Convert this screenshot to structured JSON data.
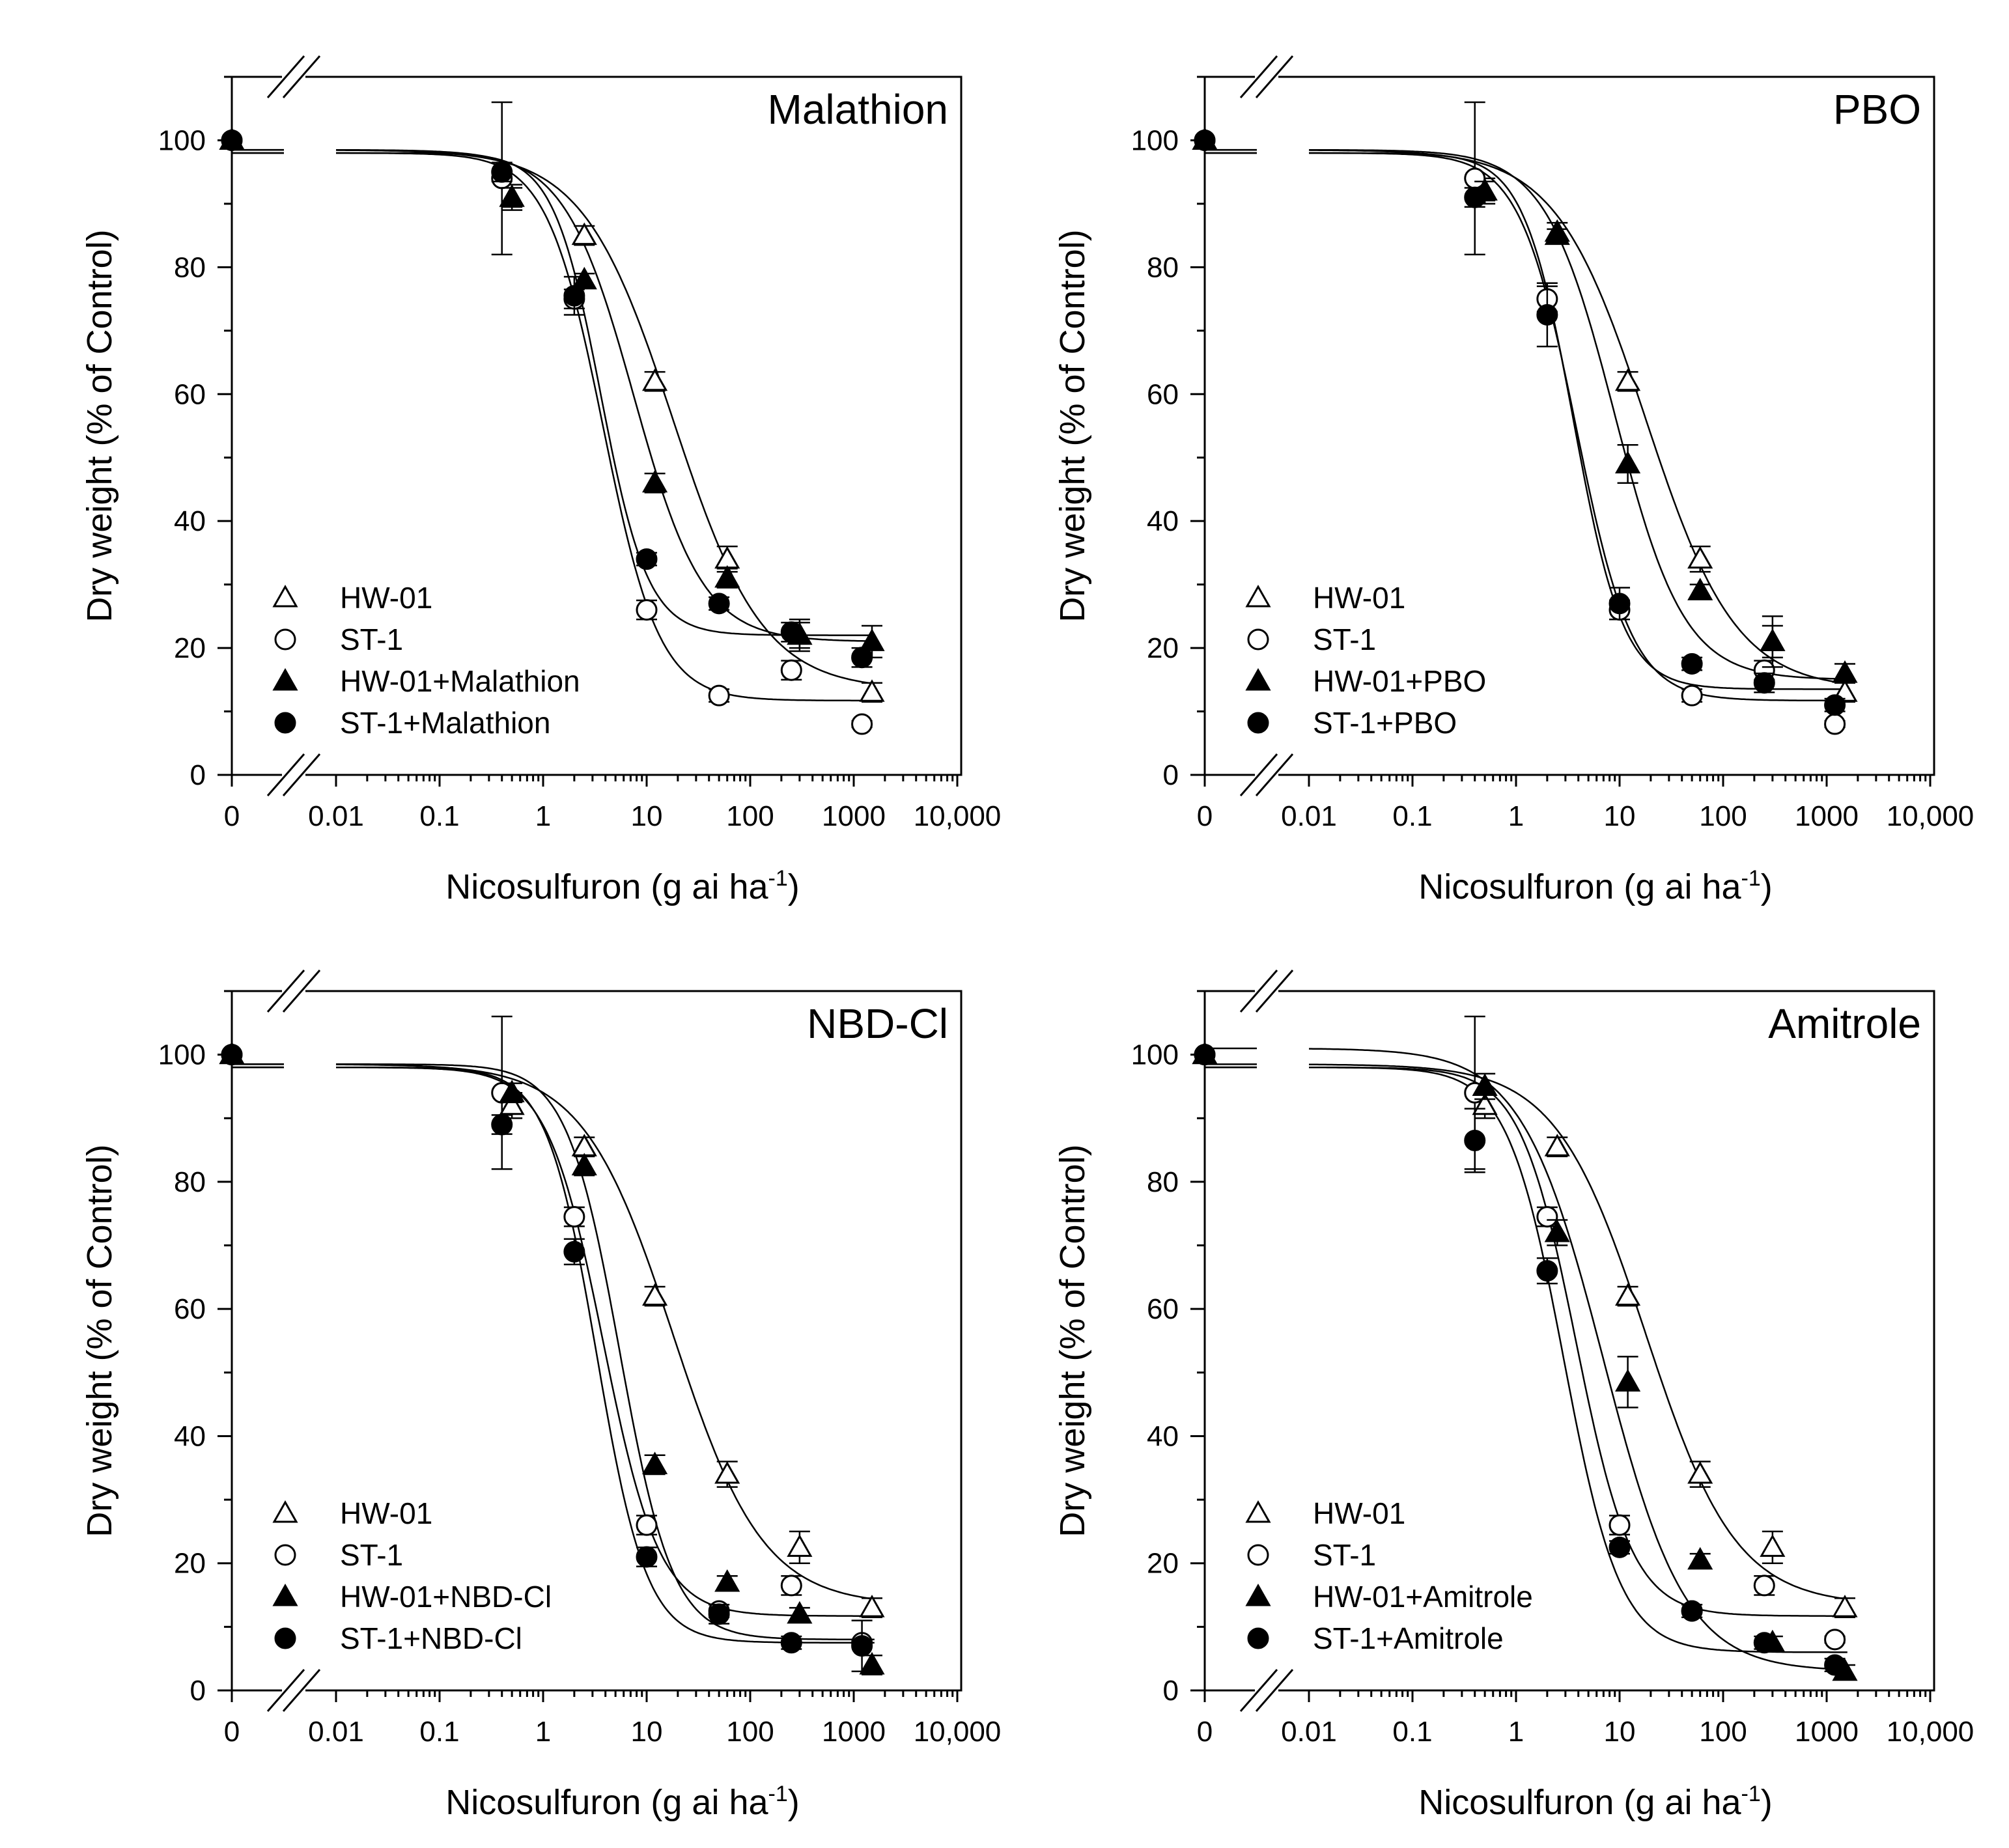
{
  "figure": {
    "shared": {
      "xlabel": "Nicosulfuron (g ai ha",
      "xlabel_sup": "-1",
      "xlabel_end": ")",
      "ylabel": "Dry weight (% of Control)",
      "x_tick_labels": [
        "0",
        "0.01",
        "0.1",
        "1",
        "10",
        "100",
        "1000",
        "10,000"
      ],
      "y_tick_labels": [
        "0",
        "20",
        "40",
        "60",
        "80",
        "100"
      ]
    }
  },
  "chart_data": [
    {
      "type": "scatter",
      "title": "Malathion",
      "xlabel": "Nicosulfuron (g ai ha-1)",
      "ylabel": "Dry weight (% of Control)",
      "x_scale": "log with axis break (0 plotted before break)",
      "xlim": [
        0.01,
        10000
      ],
      "ylim": [
        0,
        110
      ],
      "grid": false,
      "legend_position": "bottom-left",
      "series": [
        {
          "name": "HW-01",
          "marker": "triangle-open",
          "x": [
            0,
            0.5,
            2.5,
            12,
            60,
            300,
            1500
          ],
          "y": [
            100,
            91,
            85,
            62,
            34,
            22,
            13
          ],
          "err": [
            0,
            2,
            1.5,
            1.5,
            2,
            2.5,
            1.5
          ],
          "fit": {
            "bottom": 13.4,
            "top": 98.5,
            "ed50": 18,
            "slope": 1.0
          }
        },
        {
          "name": "ST-1",
          "marker": "circle-open",
          "x": [
            0,
            0.4,
            2,
            10,
            50,
            250,
            1200
          ],
          "y": [
            100,
            94,
            75,
            26,
            12.5,
            16.5,
            8
          ],
          "err": [
            0,
            12,
            1.5,
            1.5,
            1,
            1.5,
            0.5
          ],
          "fit": {
            "bottom": 11.7,
            "top": 98,
            "ed50": 3.8,
            "slope": 1.6
          }
        },
        {
          "name": "HW-01+Malathion",
          "marker": "triangle-filled",
          "x": [
            0,
            0.5,
            2.5,
            12,
            60,
            300,
            1500
          ],
          "y": [
            100,
            91,
            78,
            46,
            31,
            22,
            21
          ],
          "err": [
            0,
            1.5,
            1,
            1.5,
            1.5,
            2,
            2.5
          ],
          "fit": {
            "bottom": 21,
            "top": 98.5,
            "ed50": 7.5,
            "slope": 1.3
          }
        },
        {
          "name": "ST-1+Malathion",
          "marker": "circle-filled",
          "x": [
            0,
            0.4,
            2,
            10,
            50,
            250,
            1200
          ],
          "y": [
            100,
            95,
            75.5,
            34,
            27,
            22.5,
            18.5
          ],
          "err": [
            0,
            1.5,
            3,
            1,
            1,
            1.5,
            1.5
          ],
          "fit": {
            "bottom": 22,
            "top": 98,
            "ed50": 3.6,
            "slope": 1.9
          }
        }
      ]
    },
    {
      "type": "scatter",
      "title": "PBO",
      "xlabel": "Nicosulfuron (g ai ha-1)",
      "ylabel": "Dry weight (% of Control)",
      "x_scale": "log with axis break (0 plotted before break)",
      "xlim": [
        0.01,
        10000
      ],
      "ylim": [
        0,
        110
      ],
      "grid": false,
      "legend_position": "bottom-left",
      "series": [
        {
          "name": "HW-01",
          "marker": "triangle-open",
          "x": [
            0,
            0.5,
            2.5,
            12,
            60,
            300,
            1500
          ],
          "y": [
            100,
            92,
            85.5,
            62,
            34,
            21,
            13
          ],
          "err": [
            0,
            2,
            1.5,
            1.5,
            2,
            2.5,
            1.5
          ],
          "fit": {
            "bottom": 13.4,
            "top": 98.5,
            "ed50": 18,
            "slope": 1.0
          }
        },
        {
          "name": "ST-1",
          "marker": "circle-open",
          "x": [
            0,
            0.4,
            2,
            10,
            50,
            250,
            1200
          ],
          "y": [
            100,
            94,
            75,
            26,
            12.5,
            16.5,
            8
          ],
          "err": [
            0,
            12,
            2,
            1.5,
            1,
            1.5,
            0.5
          ],
          "fit": {
            "bottom": 11.7,
            "top": 98,
            "ed50": 3.8,
            "slope": 1.6
          }
        },
        {
          "name": "HW-01+PBO",
          "marker": "triangle-filled",
          "x": [
            0,
            0.5,
            2.5,
            12,
            60,
            300,
            1500
          ],
          "y": [
            100,
            92,
            85,
            49,
            29,
            21,
            16
          ],
          "err": [
            0,
            1.5,
            1,
            3,
            1,
            4,
            1.5
          ],
          "fit": {
            "bottom": 15,
            "top": 98.5,
            "ed50": 9,
            "slope": 1.3
          }
        },
        {
          "name": "ST-1+PBO",
          "marker": "circle-filled",
          "x": [
            0,
            0.4,
            2,
            10,
            50,
            250,
            1200
          ],
          "y": [
            100,
            91,
            72.5,
            27,
            17.5,
            14.5,
            11
          ],
          "err": [
            0,
            1.5,
            5,
            2.5,
            1,
            1.5,
            1
          ],
          "fit": {
            "bottom": 13.5,
            "top": 98,
            "ed50": 3.6,
            "slope": 1.8
          }
        }
      ]
    },
    {
      "type": "scatter",
      "title": "NBD-Cl",
      "xlabel": "Nicosulfuron (g ai ha-1)",
      "ylabel": "Dry weight (% of Control)",
      "x_scale": "log with axis break (0 plotted before break)",
      "xlim": [
        0.01,
        10000
      ],
      "ylim": [
        0,
        110
      ],
      "grid": false,
      "legend_position": "bottom-left",
      "series": [
        {
          "name": "HW-01",
          "marker": "triangle-open",
          "x": [
            0,
            0.5,
            2.5,
            12,
            60,
            300,
            1500
          ],
          "y": [
            100,
            92,
            85.5,
            62,
            34,
            22.5,
            13
          ],
          "err": [
            0,
            2,
            1.5,
            1.5,
            2,
            2.5,
            1.5
          ],
          "fit": {
            "bottom": 13.4,
            "top": 98.5,
            "ed50": 18,
            "slope": 1.0
          }
        },
        {
          "name": "ST-1",
          "marker": "circle-open",
          "x": [
            0,
            0.4,
            2,
            10,
            50,
            250,
            1200
          ],
          "y": [
            100,
            94,
            74.5,
            26,
            12.5,
            16.5,
            7.5
          ],
          "err": [
            0,
            12,
            1.5,
            1.5,
            1,
            1.5,
            0.5
          ],
          "fit": {
            "bottom": 11.7,
            "top": 98,
            "ed50": 3.8,
            "slope": 1.6
          }
        },
        {
          "name": "HW-01+NBD-Cl",
          "marker": "triangle-filled",
          "x": [
            0,
            0.5,
            2.5,
            12,
            60,
            300,
            1500
          ],
          "y": [
            100,
            94,
            82.5,
            35.5,
            17,
            12,
            4
          ],
          "err": [
            0,
            1.5,
            1.5,
            1.5,
            1,
            1,
            1.5
          ],
          "fit": {
            "bottom": 8,
            "top": 98.5,
            "ed50": 5.5,
            "slope": 1.7
          }
        },
        {
          "name": "ST-1+NBD-Cl",
          "marker": "circle-filled",
          "x": [
            0,
            0.4,
            2,
            10,
            50,
            250,
            1200
          ],
          "y": [
            100,
            89,
            69,
            21,
            12,
            7.5,
            7
          ],
          "err": [
            0,
            1.5,
            2,
            1.5,
            1.5,
            1,
            4
          ],
          "fit": {
            "bottom": 7.5,
            "top": 98,
            "ed50": 3.3,
            "slope": 1.8
          }
        }
      ]
    },
    {
      "type": "scatter",
      "title": "Amitrole",
      "xlabel": "Nicosulfuron (g ai ha-1)",
      "ylabel": "Dry weight (% of Control)",
      "x_scale": "log with axis break (0 plotted before break)",
      "xlim": [
        0.01,
        10000
      ],
      "ylim": [
        0,
        110
      ],
      "grid": false,
      "legend_position": "bottom-left",
      "series": [
        {
          "name": "HW-01",
          "marker": "triangle-open",
          "x": [
            0,
            0.5,
            2.5,
            12,
            60,
            300,
            1500
          ],
          "y": [
            100,
            92,
            85.5,
            62,
            34,
            22.5,
            13
          ],
          "err": [
            0,
            2,
            1.5,
            1.5,
            2,
            2.5,
            1.5
          ],
          "fit": {
            "bottom": 13.4,
            "top": 98.5,
            "ed50": 18,
            "slope": 1.0
          }
        },
        {
          "name": "ST-1",
          "marker": "circle-open",
          "x": [
            0,
            0.4,
            2,
            10,
            50,
            250,
            1200
          ],
          "y": [
            100,
            94,
            74.5,
            26,
            12.5,
            16.5,
            8
          ],
          "err": [
            0,
            12,
            1.5,
            1.5,
            1,
            1.5,
            0.5
          ],
          "fit": {
            "bottom": 11.7,
            "top": 98,
            "ed50": 3.8,
            "slope": 1.6
          }
        },
        {
          "name": "HW-01+Amitrole",
          "marker": "triangle-filled",
          "x": [
            0,
            0.5,
            2.5,
            12,
            60,
            300,
            1500
          ],
          "y": [
            100,
            95,
            72,
            48.5,
            20.5,
            7.5,
            3
          ],
          "err": [
            0,
            2,
            2,
            4,
            1,
            1,
            1
          ],
          "fit": {
            "bottom": 3,
            "top": 101,
            "ed50": 7,
            "slope": 1.1
          }
        },
        {
          "name": "ST-1+Amitrole",
          "marker": "circle-filled",
          "x": [
            0,
            0.4,
            2,
            10,
            50,
            250,
            1200
          ],
          "y": [
            100,
            86.5,
            66,
            22.5,
            12.5,
            7.5,
            4
          ],
          "err": [
            0,
            5,
            2,
            1,
            1,
            1,
            1
          ],
          "fit": {
            "bottom": 6,
            "top": 98,
            "ed50": 2.9,
            "slope": 1.6
          }
        }
      ]
    }
  ]
}
